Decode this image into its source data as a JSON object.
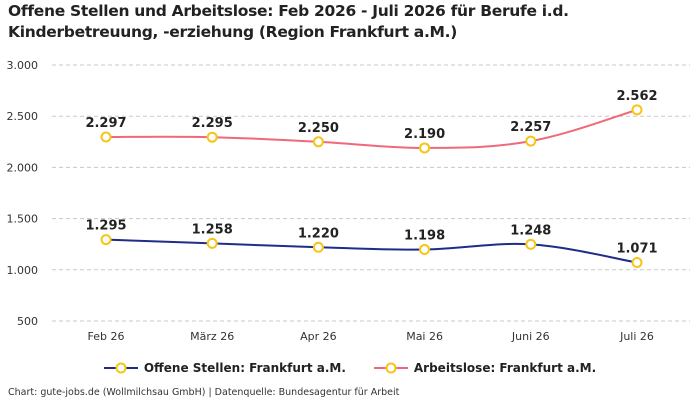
{
  "title_line1": "Offene Stellen und Arbeitslose: Feb 2026 - Juli 2026 für Berufe i.d.",
  "title_line2": "Kinderbetreuung, -erziehung (Region Frankfurt a.M.)",
  "footer": "Chart: gute-jobs.de (Wollmilchsau GmbH) | Datenquelle: Bundesagentur für Arbeit",
  "chart_data": {
    "type": "line",
    "categories": [
      "Feb 26",
      "März 26",
      "Apr 26",
      "Mai 26",
      "Juni 26",
      "Juli 26"
    ],
    "series": [
      {
        "name": "Offene Stellen: Frankfurt a.M.",
        "values": [
          1295,
          1258,
          1220,
          1198,
          1248,
          1071
        ],
        "labels": [
          "1.295",
          "1.258",
          "1.220",
          "1.198",
          "1.248",
          "1.071"
        ],
        "color": "#1f2d8a"
      },
      {
        "name": "Arbeitslose: Frankfurt a.M.",
        "values": [
          2297,
          2295,
          2250,
          2190,
          2257,
          2562
        ],
        "labels": [
          "2.297",
          "2.295",
          "2.250",
          "2.190",
          "2.257",
          "2.562"
        ],
        "color": "#f0697a"
      }
    ],
    "yticks": [
      500,
      1000,
      1500,
      2000,
      2500,
      3000
    ],
    "ytick_labels": [
      "500",
      "1.000",
      "1.500",
      "2.000",
      "2.500",
      "3.000"
    ],
    "ylim": [
      500,
      3000
    ],
    "grid": true,
    "legend": "bottom",
    "marker_fill": "#ffffff",
    "marker_stroke": "#f5c518"
  }
}
